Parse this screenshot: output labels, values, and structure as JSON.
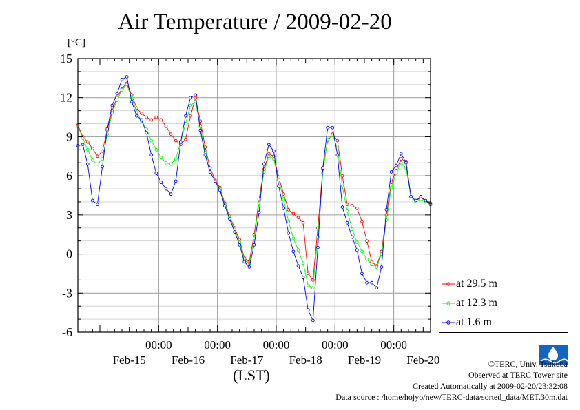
{
  "chart_data": {
    "type": "line",
    "title": "Air Temperature / 2009-02-20",
    "unit_label": "[°C]",
    "xlabel": "(LST)",
    "y_ticks": [
      "15",
      "12",
      "9",
      "6",
      "3",
      "0",
      "-3",
      "-6"
    ],
    "ylim": [
      -6,
      15
    ],
    "x_range_hours": [
      -33,
      111
    ],
    "x_time_labels": [
      "00:00",
      "00:00",
      "00:00",
      "00:00",
      "00:00"
    ],
    "x_date_labels": [
      "Feb-15",
      "Feb-16",
      "Feb-17",
      "Feb-18",
      "Feb-19",
      "Feb-20"
    ],
    "grid": true,
    "legend_position": "right",
    "series": [
      {
        "name": "at 29.5 m",
        "color": "#ff0000",
        "points": [
          [
            -33,
            9.9
          ],
          [
            -31,
            9.0
          ],
          [
            -29,
            8.6
          ],
          [
            -27,
            8.1
          ],
          [
            -25,
            7.5
          ],
          [
            -23,
            7.9
          ],
          [
            -21,
            9.5
          ],
          [
            -19,
            11.0
          ],
          [
            -17,
            12.0
          ],
          [
            -15,
            12.7
          ],
          [
            -13,
            13.1
          ],
          [
            -11,
            12.2
          ],
          [
            -9,
            11.2
          ],
          [
            -7,
            10.8
          ],
          [
            -5,
            10.5
          ],
          [
            -3,
            10.3
          ],
          [
            -1,
            10.5
          ],
          [
            1,
            10.3
          ],
          [
            3,
            9.8
          ],
          [
            5,
            9.2
          ],
          [
            7,
            8.7
          ],
          [
            9,
            8.4
          ],
          [
            11,
            8.8
          ],
          [
            13,
            10.6
          ],
          [
            15,
            12.0
          ],
          [
            17,
            10.2
          ],
          [
            19,
            8.2
          ],
          [
            21,
            6.6
          ],
          [
            23,
            5.7
          ],
          [
            25,
            5.1
          ],
          [
            27,
            3.9
          ],
          [
            29,
            2.9
          ],
          [
            31,
            2.0
          ],
          [
            33,
            1.1
          ],
          [
            35,
            -0.3
          ],
          [
            37,
            -0.6
          ],
          [
            39,
            1.5
          ],
          [
            41,
            4.2
          ],
          [
            43,
            6.5
          ],
          [
            45,
            7.7
          ],
          [
            47,
            7.5
          ],
          [
            49,
            5.9
          ],
          [
            51,
            4.6
          ],
          [
            53,
            3.4
          ],
          [
            55,
            3.1
          ],
          [
            57,
            2.8
          ],
          [
            59,
            2.4
          ],
          [
            61,
            -1.5
          ],
          [
            63,
            -2.0
          ],
          [
            65,
            2.0
          ],
          [
            67,
            6.5
          ],
          [
            69,
            8.7
          ],
          [
            71,
            9.2
          ],
          [
            73,
            8.7
          ],
          [
            75,
            6.0
          ],
          [
            77,
            3.8
          ],
          [
            79,
            3.7
          ],
          [
            81,
            3.5
          ],
          [
            83,
            2.5
          ],
          [
            85,
            1.0
          ],
          [
            87,
            -0.6
          ],
          [
            89,
            -0.9
          ],
          [
            91,
            0.2
          ],
          [
            93,
            3.0
          ],
          [
            95,
            5.5
          ],
          [
            97,
            6.4
          ],
          [
            99,
            7.3
          ],
          [
            101,
            7.1
          ],
          [
            103,
            4.4
          ],
          [
            105,
            4.1
          ],
          [
            107,
            4.3
          ],
          [
            109,
            4.1
          ],
          [
            111,
            3.9
          ]
        ]
      },
      {
        "name": "at 12.3 m",
        "color": "#00ff00",
        "points": [
          [
            -33,
            9.8
          ],
          [
            -31,
            8.9
          ],
          [
            -29,
            8.0
          ],
          [
            -27,
            7.2
          ],
          [
            -25,
            6.9
          ],
          [
            -23,
            7.3
          ],
          [
            -21,
            9.2
          ],
          [
            -19,
            10.8
          ],
          [
            -17,
            11.8
          ],
          [
            -15,
            12.6
          ],
          [
            -13,
            13.0
          ],
          [
            -11,
            12.0
          ],
          [
            -9,
            10.9
          ],
          [
            -7,
            10.2
          ],
          [
            -5,
            9.6
          ],
          [
            -3,
            8.7
          ],
          [
            -1,
            8.0
          ],
          [
            1,
            7.4
          ],
          [
            3,
            7.0
          ],
          [
            5,
            6.9
          ],
          [
            7,
            7.3
          ],
          [
            9,
            8.6
          ],
          [
            11,
            10.0
          ],
          [
            13,
            11.4
          ],
          [
            15,
            11.7
          ],
          [
            17,
            9.8
          ],
          [
            19,
            7.8
          ],
          [
            21,
            6.3
          ],
          [
            23,
            5.6
          ],
          [
            25,
            5.0
          ],
          [
            27,
            3.8
          ],
          [
            29,
            2.8
          ],
          [
            31,
            1.9
          ],
          [
            33,
            0.9
          ],
          [
            35,
            -0.4
          ],
          [
            37,
            -0.8
          ],
          [
            39,
            1.2
          ],
          [
            41,
            3.9
          ],
          [
            43,
            6.3
          ],
          [
            45,
            7.5
          ],
          [
            47,
            7.3
          ],
          [
            49,
            5.7
          ],
          [
            51,
            4.2
          ],
          [
            53,
            2.5
          ],
          [
            55,
            1.2
          ],
          [
            57,
            0.3
          ],
          [
            59,
            -0.7
          ],
          [
            61,
            -2.4
          ],
          [
            63,
            -2.6
          ],
          [
            65,
            1.3
          ],
          [
            67,
            6.2
          ],
          [
            69,
            8.8
          ],
          [
            71,
            9.1
          ],
          [
            73,
            8.1
          ],
          [
            75,
            5.2
          ],
          [
            77,
            3.3
          ],
          [
            79,
            1.9
          ],
          [
            81,
            0.9
          ],
          [
            83,
            0.2
          ],
          [
            85,
            -0.4
          ],
          [
            87,
            -0.8
          ],
          [
            89,
            -1.0
          ],
          [
            91,
            0.0
          ],
          [
            93,
            2.6
          ],
          [
            95,
            5.1
          ],
          [
            97,
            6.2
          ],
          [
            99,
            7.0
          ],
          [
            101,
            6.6
          ],
          [
            103,
            4.4
          ],
          [
            105,
            4.0
          ],
          [
            107,
            4.2
          ],
          [
            109,
            4.0
          ],
          [
            111,
            3.8
          ]
        ]
      },
      {
        "name": "at 1.6 m",
        "color": "#0000ff",
        "points": [
          [
            -33,
            8.3
          ],
          [
            -31,
            8.4
          ],
          [
            -29,
            6.9
          ],
          [
            -27,
            4.1
          ],
          [
            -25,
            3.8
          ],
          [
            -23,
            6.7
          ],
          [
            -21,
            9.6
          ],
          [
            -19,
            11.4
          ],
          [
            -17,
            12.3
          ],
          [
            -15,
            13.4
          ],
          [
            -13,
            13.6
          ],
          [
            -11,
            11.7
          ],
          [
            -9,
            10.6
          ],
          [
            -7,
            10.3
          ],
          [
            -5,
            9.3
          ],
          [
            -3,
            7.6
          ],
          [
            -1,
            6.2
          ],
          [
            1,
            5.5
          ],
          [
            3,
            5.0
          ],
          [
            5,
            4.6
          ],
          [
            7,
            5.6
          ],
          [
            9,
            8.6
          ],
          [
            11,
            10.6
          ],
          [
            13,
            12.0
          ],
          [
            15,
            12.2
          ],
          [
            17,
            9.5
          ],
          [
            19,
            7.6
          ],
          [
            21,
            6.3
          ],
          [
            23,
            5.6
          ],
          [
            25,
            4.9
          ],
          [
            27,
            3.7
          ],
          [
            29,
            2.7
          ],
          [
            31,
            1.7
          ],
          [
            33,
            0.7
          ],
          [
            35,
            -0.6
          ],
          [
            37,
            -1.0
          ],
          [
            39,
            0.7
          ],
          [
            41,
            3.2
          ],
          [
            43,
            6.9
          ],
          [
            45,
            8.4
          ],
          [
            47,
            7.9
          ],
          [
            49,
            5.2
          ],
          [
            51,
            3.5
          ],
          [
            53,
            1.6
          ],
          [
            55,
            0.2
          ],
          [
            57,
            -0.9
          ],
          [
            59,
            -1.8
          ],
          [
            61,
            -4.3
          ],
          [
            63,
            -5.1
          ],
          [
            65,
            0.5
          ],
          [
            67,
            6.6
          ],
          [
            69,
            9.7
          ],
          [
            71,
            9.7
          ],
          [
            73,
            7.6
          ],
          [
            75,
            3.6
          ],
          [
            77,
            2.4
          ],
          [
            79,
            1.3
          ],
          [
            81,
            0.3
          ],
          [
            83,
            -1.5
          ],
          [
            85,
            -2.2
          ],
          [
            87,
            -2.2
          ],
          [
            89,
            -2.6
          ],
          [
            91,
            -1.0
          ],
          [
            93,
            3.4
          ],
          [
            95,
            6.3
          ],
          [
            97,
            6.8
          ],
          [
            99,
            7.7
          ],
          [
            101,
            7.0
          ],
          [
            103,
            4.4
          ],
          [
            105,
            4.1
          ],
          [
            107,
            4.4
          ],
          [
            109,
            4.1
          ],
          [
            111,
            3.8
          ]
        ]
      }
    ]
  },
  "credits": {
    "copyright": "©TERC, Univ. Tsukuba",
    "observed": "Observed at TERC Tower site",
    "created": "Created Automatically at 2009-02-20/23:32:08",
    "source": "Data source : /home/hojyo/new/TERC-data/sorted_data/MET.30m.dat"
  }
}
